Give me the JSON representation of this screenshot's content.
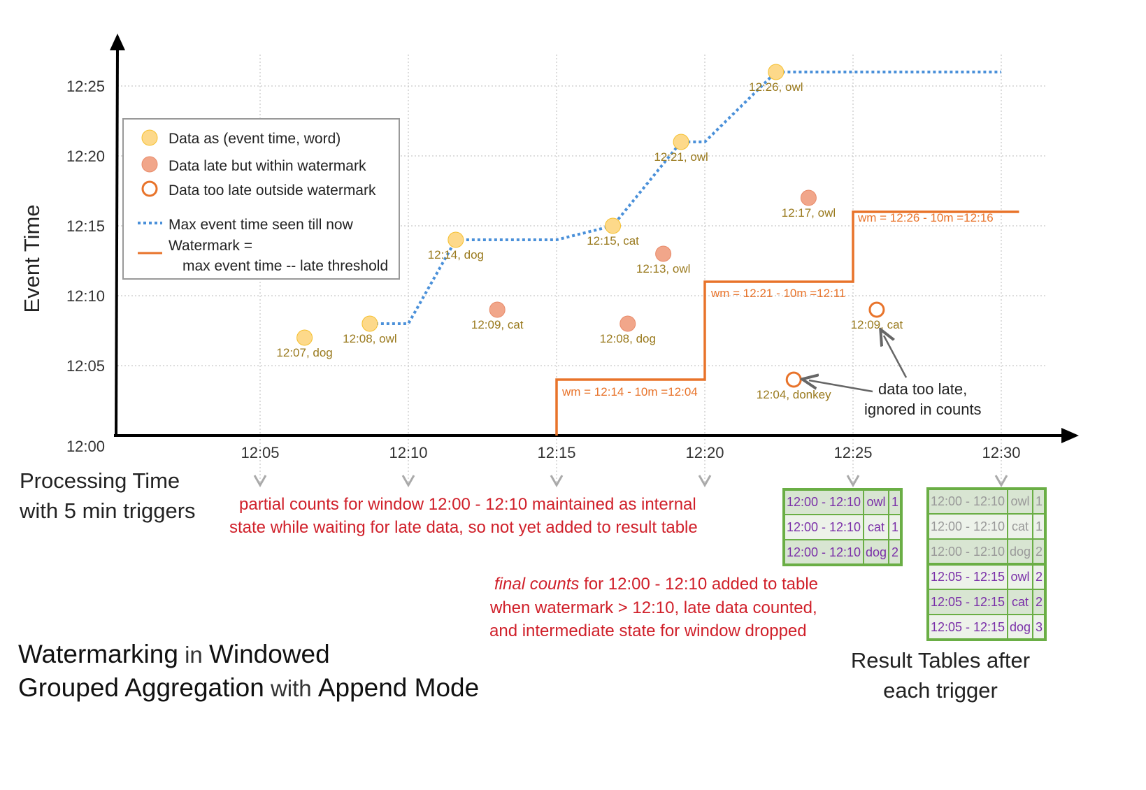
{
  "axes": {
    "y_label": "Event Time",
    "x_label_line1": "Processing Time",
    "x_label_line2": "with 5 min triggers",
    "y_ticks": [
      "12:00",
      "12:05",
      "12:10",
      "12:15",
      "12:20",
      "12:25"
    ],
    "x_ticks": [
      "12:05",
      "12:10",
      "12:15",
      "12:20",
      "12:25",
      "12:30"
    ]
  },
  "legend": {
    "on_time": "Data as (event time, word)",
    "late": "Data late but within watermark",
    "too_late": "Data too late outside watermark",
    "max_event": "Max event time seen till now",
    "watermark_1": "Watermark =",
    "watermark_2": "max event time -- late threshold"
  },
  "colors": {
    "on_time": "#fdd98a",
    "late": "#f1a68a",
    "too_late": "#e8732a",
    "max_line": "#4a90d9",
    "watermark": "#e8732a",
    "table_border": "#6aae45",
    "annotation": "#d0202a"
  },
  "points": [
    {
      "proc": "12:06:30",
      "event": "12:07",
      "label": "12:07, dog",
      "kind": "on_time"
    },
    {
      "proc": "12:08:42",
      "event": "12:08",
      "label": "12:08, owl",
      "kind": "on_time"
    },
    {
      "proc": "12:11:36",
      "event": "12:14",
      "label": "12:14, dog",
      "kind": "on_time"
    },
    {
      "proc": "12:13:00",
      "event": "12:09",
      "label": "12:09, cat",
      "kind": "late"
    },
    {
      "proc": "12:16:54",
      "event": "12:15",
      "label": "12:15, cat",
      "kind": "on_time"
    },
    {
      "proc": "12:17:24",
      "event": "12:08",
      "label": "12:08, dog",
      "kind": "late"
    },
    {
      "proc": "12:18:36",
      "event": "12:13",
      "label": "12:13, owl",
      "kind": "late"
    },
    {
      "proc": "12:19:12",
      "event": "12:21",
      "label": "12:21, owl",
      "kind": "on_time"
    },
    {
      "proc": "12:22:24",
      "event": "12:26",
      "label": "12:26, owl",
      "kind": "on_time"
    },
    {
      "proc": "12:23:00",
      "event": "12:04",
      "label": "12:04, donkey",
      "kind": "too_late"
    },
    {
      "proc": "12:23:30",
      "event": "12:17",
      "label": "12:17, owl",
      "kind": "late"
    },
    {
      "proc": "12:25:48",
      "event": "12:09",
      "label": "12:09, cat",
      "kind": "too_late"
    }
  ],
  "max_event_line": [
    [
      "12:08:42",
      "12:08"
    ],
    [
      "12:10:00",
      "12:08"
    ],
    [
      "12:11:36",
      "12:14"
    ],
    [
      "12:15:00",
      "12:14"
    ],
    [
      "12:16:54",
      "12:15"
    ],
    [
      "12:19:12",
      "12:21"
    ],
    [
      "12:20:00",
      "12:21"
    ],
    [
      "12:22:24",
      "12:26"
    ],
    [
      "12:30:00",
      "12:26"
    ]
  ],
  "watermark_line": [
    [
      "12:15:00",
      "12:00"
    ],
    [
      "12:15:00",
      "12:04"
    ],
    [
      "12:20:00",
      "12:04"
    ],
    [
      "12:20:00",
      "12:11"
    ],
    [
      "12:25:00",
      "12:11"
    ],
    [
      "12:25:00",
      "12:16"
    ],
    [
      "12:30:36",
      "12:16"
    ]
  ],
  "watermark_labels": [
    "wm = 12:14 - 10m =12:04",
    "wm = 12:21 - 10m =12:11",
    "wm = 12:26 - 10m =12:16"
  ],
  "annotations": {
    "partial_1": "partial counts for window 12:00 - 12:10 maintained as internal",
    "partial_2": "state while waiting for late data, so not yet added  to result table",
    "final_em": "final counts",
    "final_1": " for 12:00 - 12:10 added to table",
    "final_2": "when watermark > 12:10, late data counted,",
    "final_3": "and intermediate state for window dropped",
    "too_late_1": "data too late,",
    "too_late_2": "ignored in counts"
  },
  "title": {
    "w1": "Watermarking",
    "w2": " in ",
    "w3": "Windowed",
    "w4": "Grouped Aggregation",
    "w5": " with ",
    "w6": "Append Mode"
  },
  "result_caption_1": "Result Tables after",
  "result_caption_2": "each trigger",
  "table_1225": [
    [
      "12:00 - 12:10",
      "owl",
      "1"
    ],
    [
      "12:00 - 12:10",
      "cat",
      "1"
    ],
    [
      "12:00 - 12:10",
      "dog",
      "2"
    ]
  ],
  "table_1230": [
    [
      "12:00 - 12:10",
      "owl",
      "1"
    ],
    [
      "12:00 - 12:10",
      "cat",
      "1"
    ],
    [
      "12:00 - 12:10",
      "dog",
      "2"
    ],
    [
      "12:05 - 12:15",
      "owl",
      "2"
    ],
    [
      "12:05 - 12:15",
      "cat",
      "2"
    ],
    [
      "12:05 - 12:15",
      "dog",
      "3"
    ]
  ]
}
